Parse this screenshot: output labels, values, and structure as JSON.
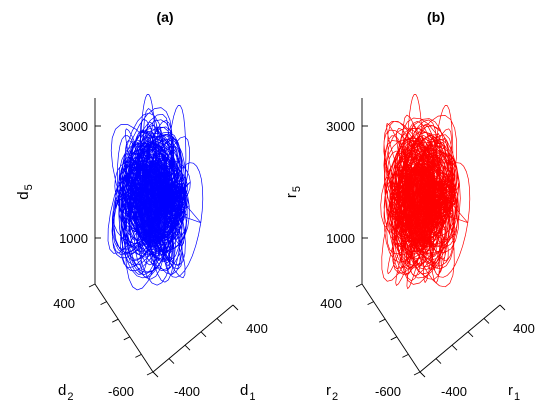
{
  "chart_data": [
    {
      "type": "line",
      "projection": "3d",
      "title": "(a)",
      "color": "#0000ff",
      "xlabel": "d",
      "xlabel_sub": "1",
      "ylabel": "d",
      "ylabel_sub": "2",
      "zlabel": "d",
      "zlabel_sub": "5",
      "x_ticks": [
        "-400",
        "400"
      ],
      "y_ticks": [
        "400",
        "-600"
      ],
      "z_ticks": [
        "1000",
        "3000"
      ],
      "x_range": [
        -500,
        500
      ],
      "y_range": [
        -600,
        500
      ],
      "z_range": [
        500,
        3200
      ],
      "series": [
        {
          "description_of_shape": "dense tangle of loops",
          "x_center": 0,
          "y_center": 0,
          "z_center": 1700,
          "z_min": 600,
          "z_max": 3400
        }
      ]
    },
    {
      "type": "line",
      "projection": "3d",
      "title": "(b)",
      "color": "#ff0000",
      "xlabel": "r",
      "xlabel_sub": "1",
      "ylabel": "r",
      "ylabel_sub": "2",
      "zlabel": "r",
      "zlabel_sub": "5",
      "x_ticks": [
        "-400",
        "400"
      ],
      "y_ticks": [
        "400",
        "-600"
      ],
      "z_ticks": [
        "1000",
        "3000"
      ],
      "x_range": [
        -500,
        500
      ],
      "y_range": [
        -600,
        500
      ],
      "z_range": [
        500,
        3200
      ],
      "series": [
        {
          "description_of_shape": "dense tangle of loops",
          "x_center": 0,
          "y_center": 0,
          "z_center": 1700,
          "z_min": 600,
          "z_max": 3400
        }
      ]
    }
  ]
}
